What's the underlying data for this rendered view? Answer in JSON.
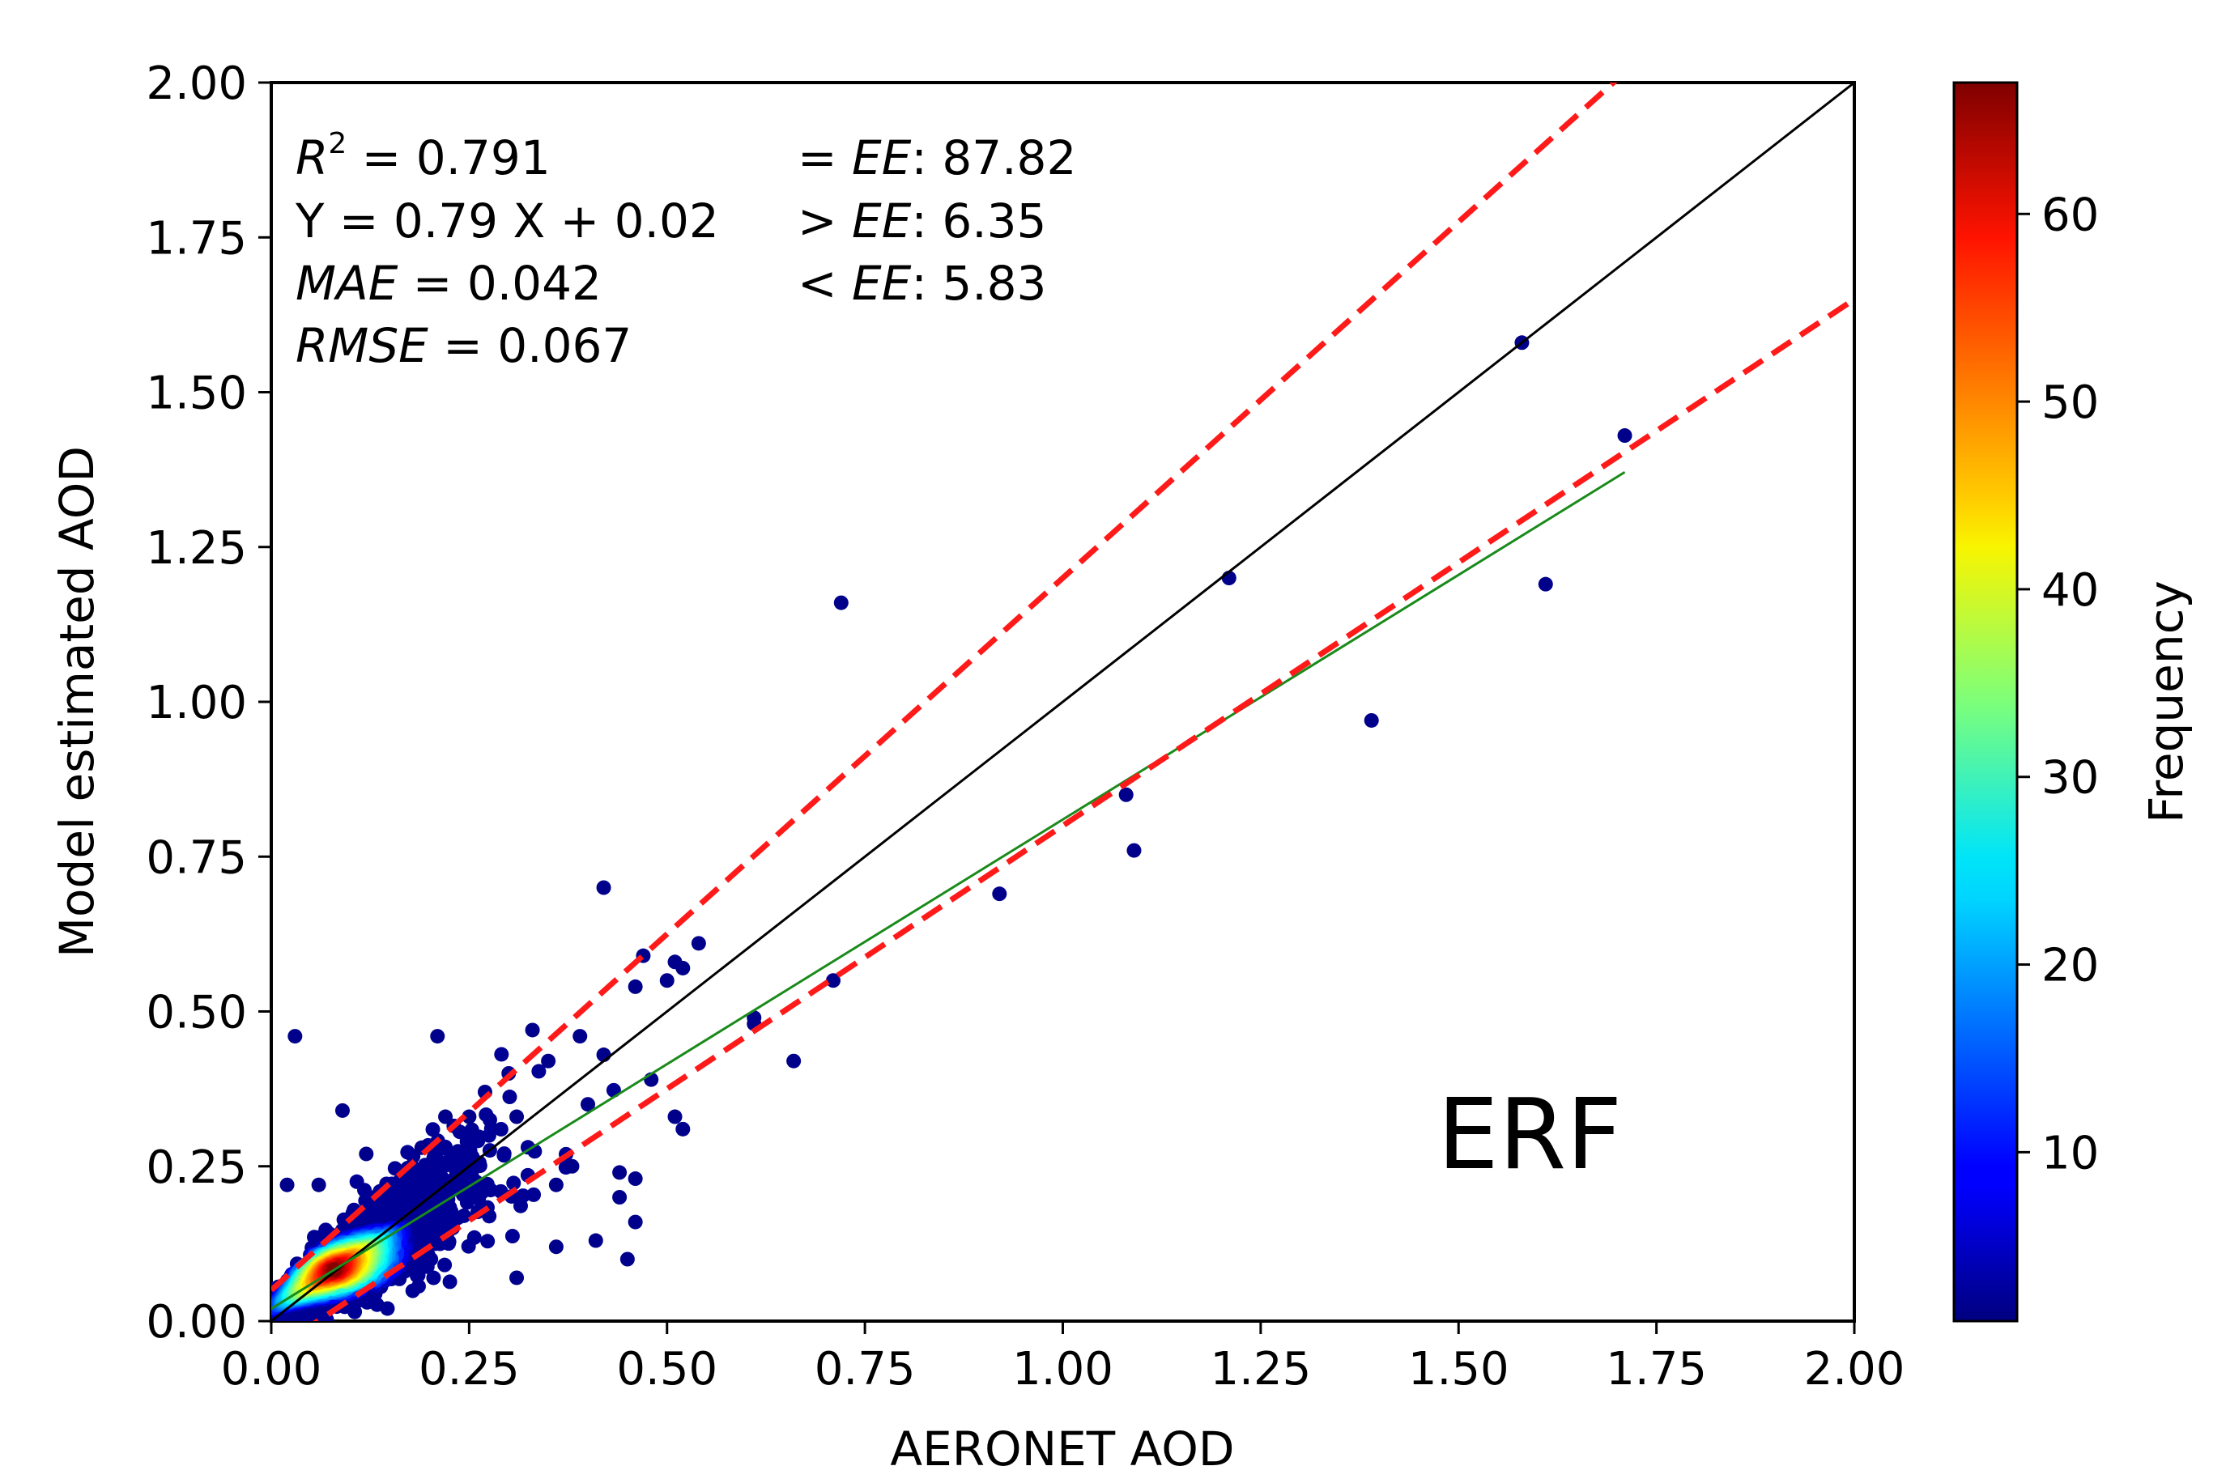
{
  "chart_data": {
    "type": "scatter",
    "subtype": "density-colored scatter",
    "xlabel": "AERONET AOD",
    "ylabel": "Model estimated AOD",
    "xlim": [
      0,
      2
    ],
    "ylim": [
      0,
      2
    ],
    "xticks": [
      "0.00",
      "0.25",
      "0.50",
      "0.75",
      "1.00",
      "1.25",
      "1.50",
      "1.75",
      "2.00"
    ],
    "yticks": [
      "0.00",
      "0.25",
      "0.50",
      "0.75",
      "1.00",
      "1.25",
      "1.50",
      "1.75",
      "2.00"
    ],
    "panel_label": "ERF",
    "stats": {
      "r2_label": "R",
      "r2_sup": "2",
      "r2_value": " = 0.791",
      "equation": "Y = 0.79 X + 0.02",
      "mae_label": "MAE",
      "mae_value": " = 0.042",
      "rmse_label": "RMSE",
      "rmse_value": " = 0.067",
      "ee_within_prefix": "= ",
      "ee_within_label": "EE",
      "ee_within_value": ": 87.82",
      "ee_above_prefix": "> ",
      "ee_above_label": "EE",
      "ee_above_value": ": 6.35",
      "ee_below_prefix": "< ",
      "ee_below_label": "EE",
      "ee_below_value": ": 5.83"
    },
    "lines": {
      "one_to_one": {
        "slope": 1.0,
        "intercept": 0.0,
        "color": "#000000"
      },
      "fit": {
        "slope": 0.79,
        "intercept": 0.02,
        "x_range": [
          0.0,
          1.71
        ],
        "color": "#1a8a1a"
      },
      "ee_upper": {
        "slope": 1.15,
        "intercept": 0.05,
        "color": "#ff1a1a"
      },
      "ee_lower": {
        "slope": 0.85,
        "intercept": -0.05,
        "color": "#ff1a1a"
      }
    },
    "colorbar": {
      "label": "Frequency",
      "min": 1,
      "max": 67,
      "ticks": [
        "10",
        "20",
        "30",
        "40",
        "50",
        "60"
      ],
      "tick_values": [
        10,
        20,
        30,
        40,
        50,
        60
      ]
    },
    "outlier_points": [
      [
        0.03,
        0.46
      ],
      [
        0.09,
        0.34
      ],
      [
        0.21,
        0.46
      ],
      [
        0.27,
        0.37
      ],
      [
        0.33,
        0.47
      ],
      [
        0.39,
        0.46
      ],
      [
        0.42,
        0.7
      ],
      [
        0.42,
        0.43
      ],
      [
        0.45,
        0.1
      ],
      [
        0.46,
        0.54
      ],
      [
        0.47,
        0.59
      ],
      [
        0.48,
        0.39
      ],
      [
        0.5,
        0.55
      ],
      [
        0.51,
        0.33
      ],
      [
        0.51,
        0.58
      ],
      [
        0.52,
        0.31
      ],
      [
        0.52,
        0.57
      ],
      [
        0.54,
        0.61
      ],
      [
        0.61,
        0.49
      ],
      [
        0.61,
        0.48
      ],
      [
        0.66,
        0.42
      ],
      [
        0.71,
        0.55
      ],
      [
        0.72,
        1.16
      ],
      [
        0.92,
        0.69
      ],
      [
        1.08,
        0.85
      ],
      [
        1.09,
        0.76
      ],
      [
        1.21,
        1.2
      ],
      [
        1.39,
        0.97
      ],
      [
        1.58,
        1.58
      ],
      [
        1.61,
        1.19
      ],
      [
        1.71,
        1.43
      ],
      [
        0.36,
        0.12
      ],
      [
        0.31,
        0.07
      ],
      [
        0.44,
        0.2
      ],
      [
        0.4,
        0.35
      ],
      [
        0.35,
        0.42
      ],
      [
        0.3,
        0.4
      ],
      [
        0.25,
        0.33
      ],
      [
        0.22,
        0.33
      ],
      [
        0.19,
        0.28
      ],
      [
        0.44,
        0.24
      ],
      [
        0.46,
        0.23
      ],
      [
        0.46,
        0.16
      ],
      [
        0.41,
        0.13
      ],
      [
        0.38,
        0.25
      ],
      [
        0.36,
        0.22
      ],
      [
        0.12,
        0.27
      ],
      [
        0.06,
        0.22
      ],
      [
        0.02,
        0.22
      ],
      [
        0.31,
        0.33
      ]
    ],
    "density": {
      "center_slope": 0.79,
      "center_intercept": 0.02,
      "x_range": [
        0.0,
        0.32
      ],
      "peak_x": 0.08,
      "note": "dense cluster near origin; colors encode frequency"
    }
  }
}
